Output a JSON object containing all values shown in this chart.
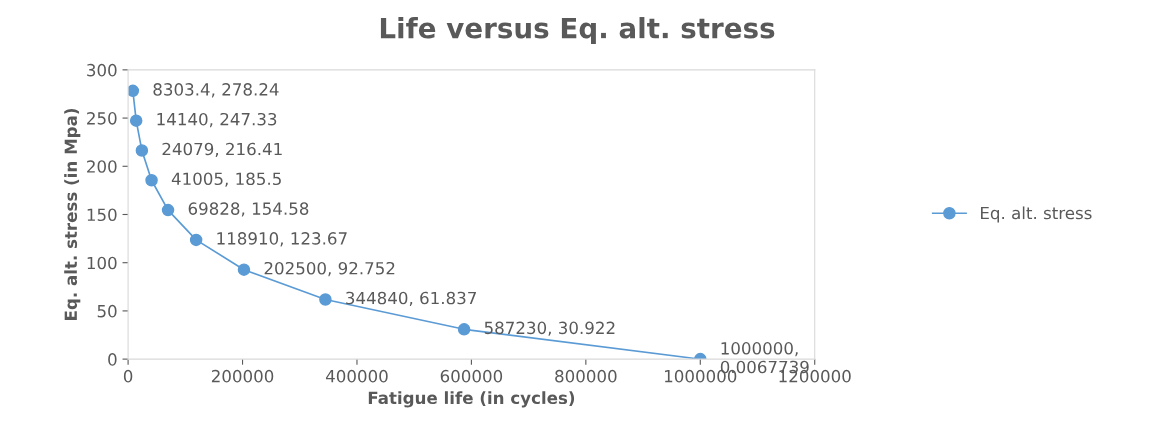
{
  "chart_data": {
    "type": "line",
    "title": "Life versus Eq. alt. stress",
    "xlabel": "Fatigue life (in cycles)",
    "ylabel": "Eq. alt. stress (in Mpa)",
    "x": [
      8303.4,
      14140,
      24079,
      41005,
      69828,
      118910,
      202500,
      344840,
      587230,
      1000000
    ],
    "series": [
      {
        "name": "Eq. alt. stress",
        "color": "#5b9bd5",
        "values": [
          278.24,
          247.33,
          216.41,
          185.5,
          154.58,
          123.67,
          92.752,
          61.837,
          30.922,
          0.0067739
        ],
        "value_labels": [
          "8303.4, 278.24",
          "14140, 247.33",
          "24079, 216.41",
          "41005, 185.5",
          "69828, 154.58",
          "118910, 123.67",
          "202500, 92.752",
          "344840, 61.837",
          "587230, 30.922",
          "1000000,\n0.0067739"
        ]
      }
    ],
    "xlim": [
      0,
      1200000
    ],
    "xticks": [
      0,
      200000,
      400000,
      600000,
      800000,
      1000000,
      1200000
    ],
    "ylim": [
      0,
      300
    ],
    "yticks": [
      0,
      50,
      100,
      150,
      200,
      250,
      300
    ],
    "grid": false,
    "legend": "right",
    "marker": "circle",
    "line_style": "solid"
  }
}
